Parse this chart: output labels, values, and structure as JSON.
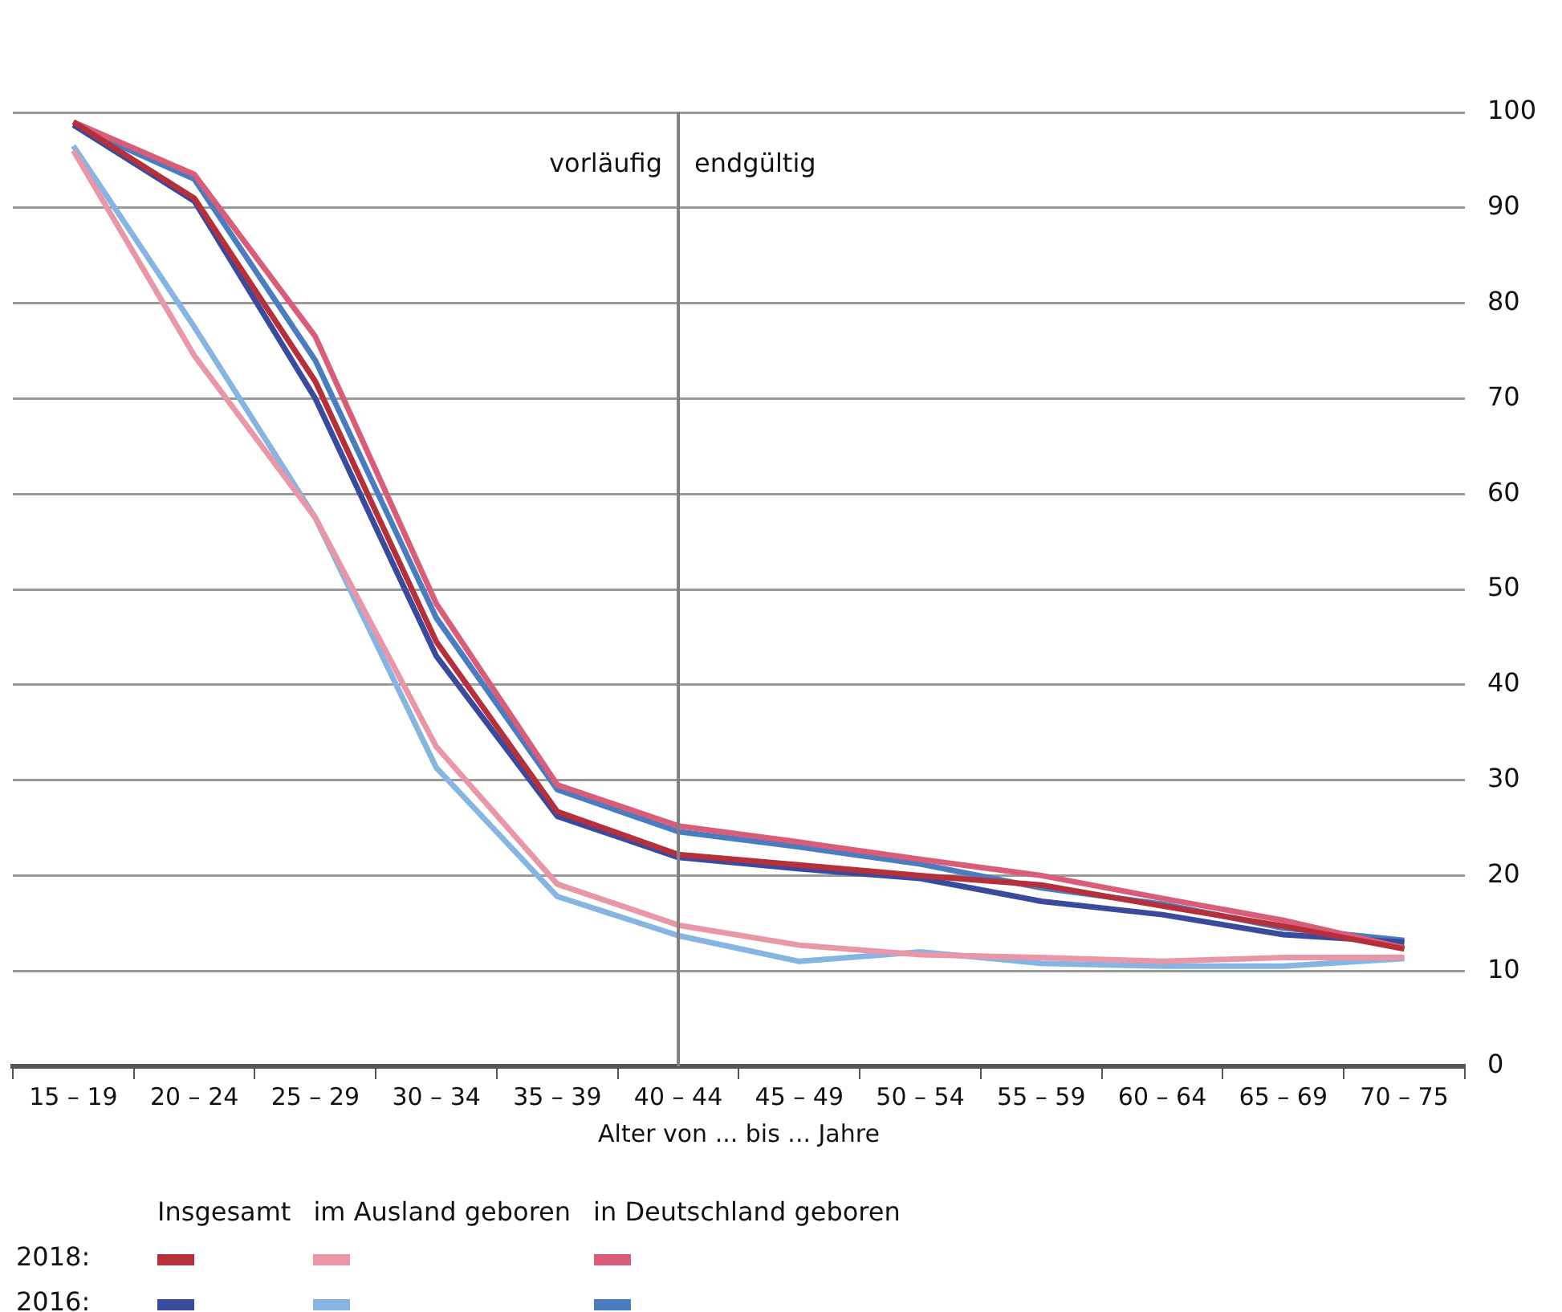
{
  "chart_data": {
    "type": "line",
    "categories": [
      "15 – 19",
      "20 – 24",
      "25 – 29",
      "30 – 34",
      "35 – 39",
      "40 – 44",
      "45 – 49",
      "50 – 54",
      "55 – 59",
      "60 – 64",
      "65 – 69",
      "70 – 75"
    ],
    "xlabel": "Alter von ... bis ... Jahre",
    "series": [
      {
        "color": "#b5303a",
        "values": [
          99,
          91,
          71.8,
          44.5,
          26.7,
          22.2,
          21.1,
          20,
          19,
          16.8,
          14.7,
          12.3
        ]
      },
      {
        "color": "#e896a8",
        "values": [
          96,
          74.5,
          57.5,
          33.5,
          19.1,
          14.8,
          12.7,
          11.7,
          11.4,
          11,
          11.4,
          11.4
        ]
      },
      {
        "color": "#d95c78",
        "values": [
          99,
          93.5,
          76.5,
          48.5,
          29.5,
          25.2,
          23.5,
          21.7,
          20,
          17.6,
          15.3,
          12.4
        ]
      },
      {
        "color": "#3a4a9c",
        "values": [
          98.7,
          90.7,
          70,
          43,
          26.2,
          21.9,
          20.7,
          19.7,
          17.3,
          15.9,
          13.8,
          13
        ]
      },
      {
        "color": "#85b5e0",
        "values": [
          96.5,
          77.5,
          57.5,
          31.3,
          17.8,
          13.7,
          11,
          12,
          10.8,
          10.5,
          10.5,
          11.3
        ]
      },
      {
        "color": "#4a7cc0",
        "values": [
          98.7,
          93,
          74,
          47,
          29,
          24.6,
          23,
          21.2,
          18.7,
          17,
          14.5,
          13.2
        ]
      }
    ],
    "ylim": [
      0,
      100
    ],
    "yticks": [
      0,
      10,
      20,
      30,
      40,
      50,
      60,
      70,
      80,
      90,
      100
    ],
    "ref_lines": [
      {
        "axis": "x",
        "value": "40 – 44",
        "color": "#808080"
      }
    ],
    "annotations": [
      "vorläufig",
      "endgültig",
      "Insgesamt",
      "im Ausland geboren",
      "in Deutschland geboren",
      "2018:",
      "2016:"
    ],
    "grid": "y",
    "marker": "none",
    "line_style": "solid"
  }
}
